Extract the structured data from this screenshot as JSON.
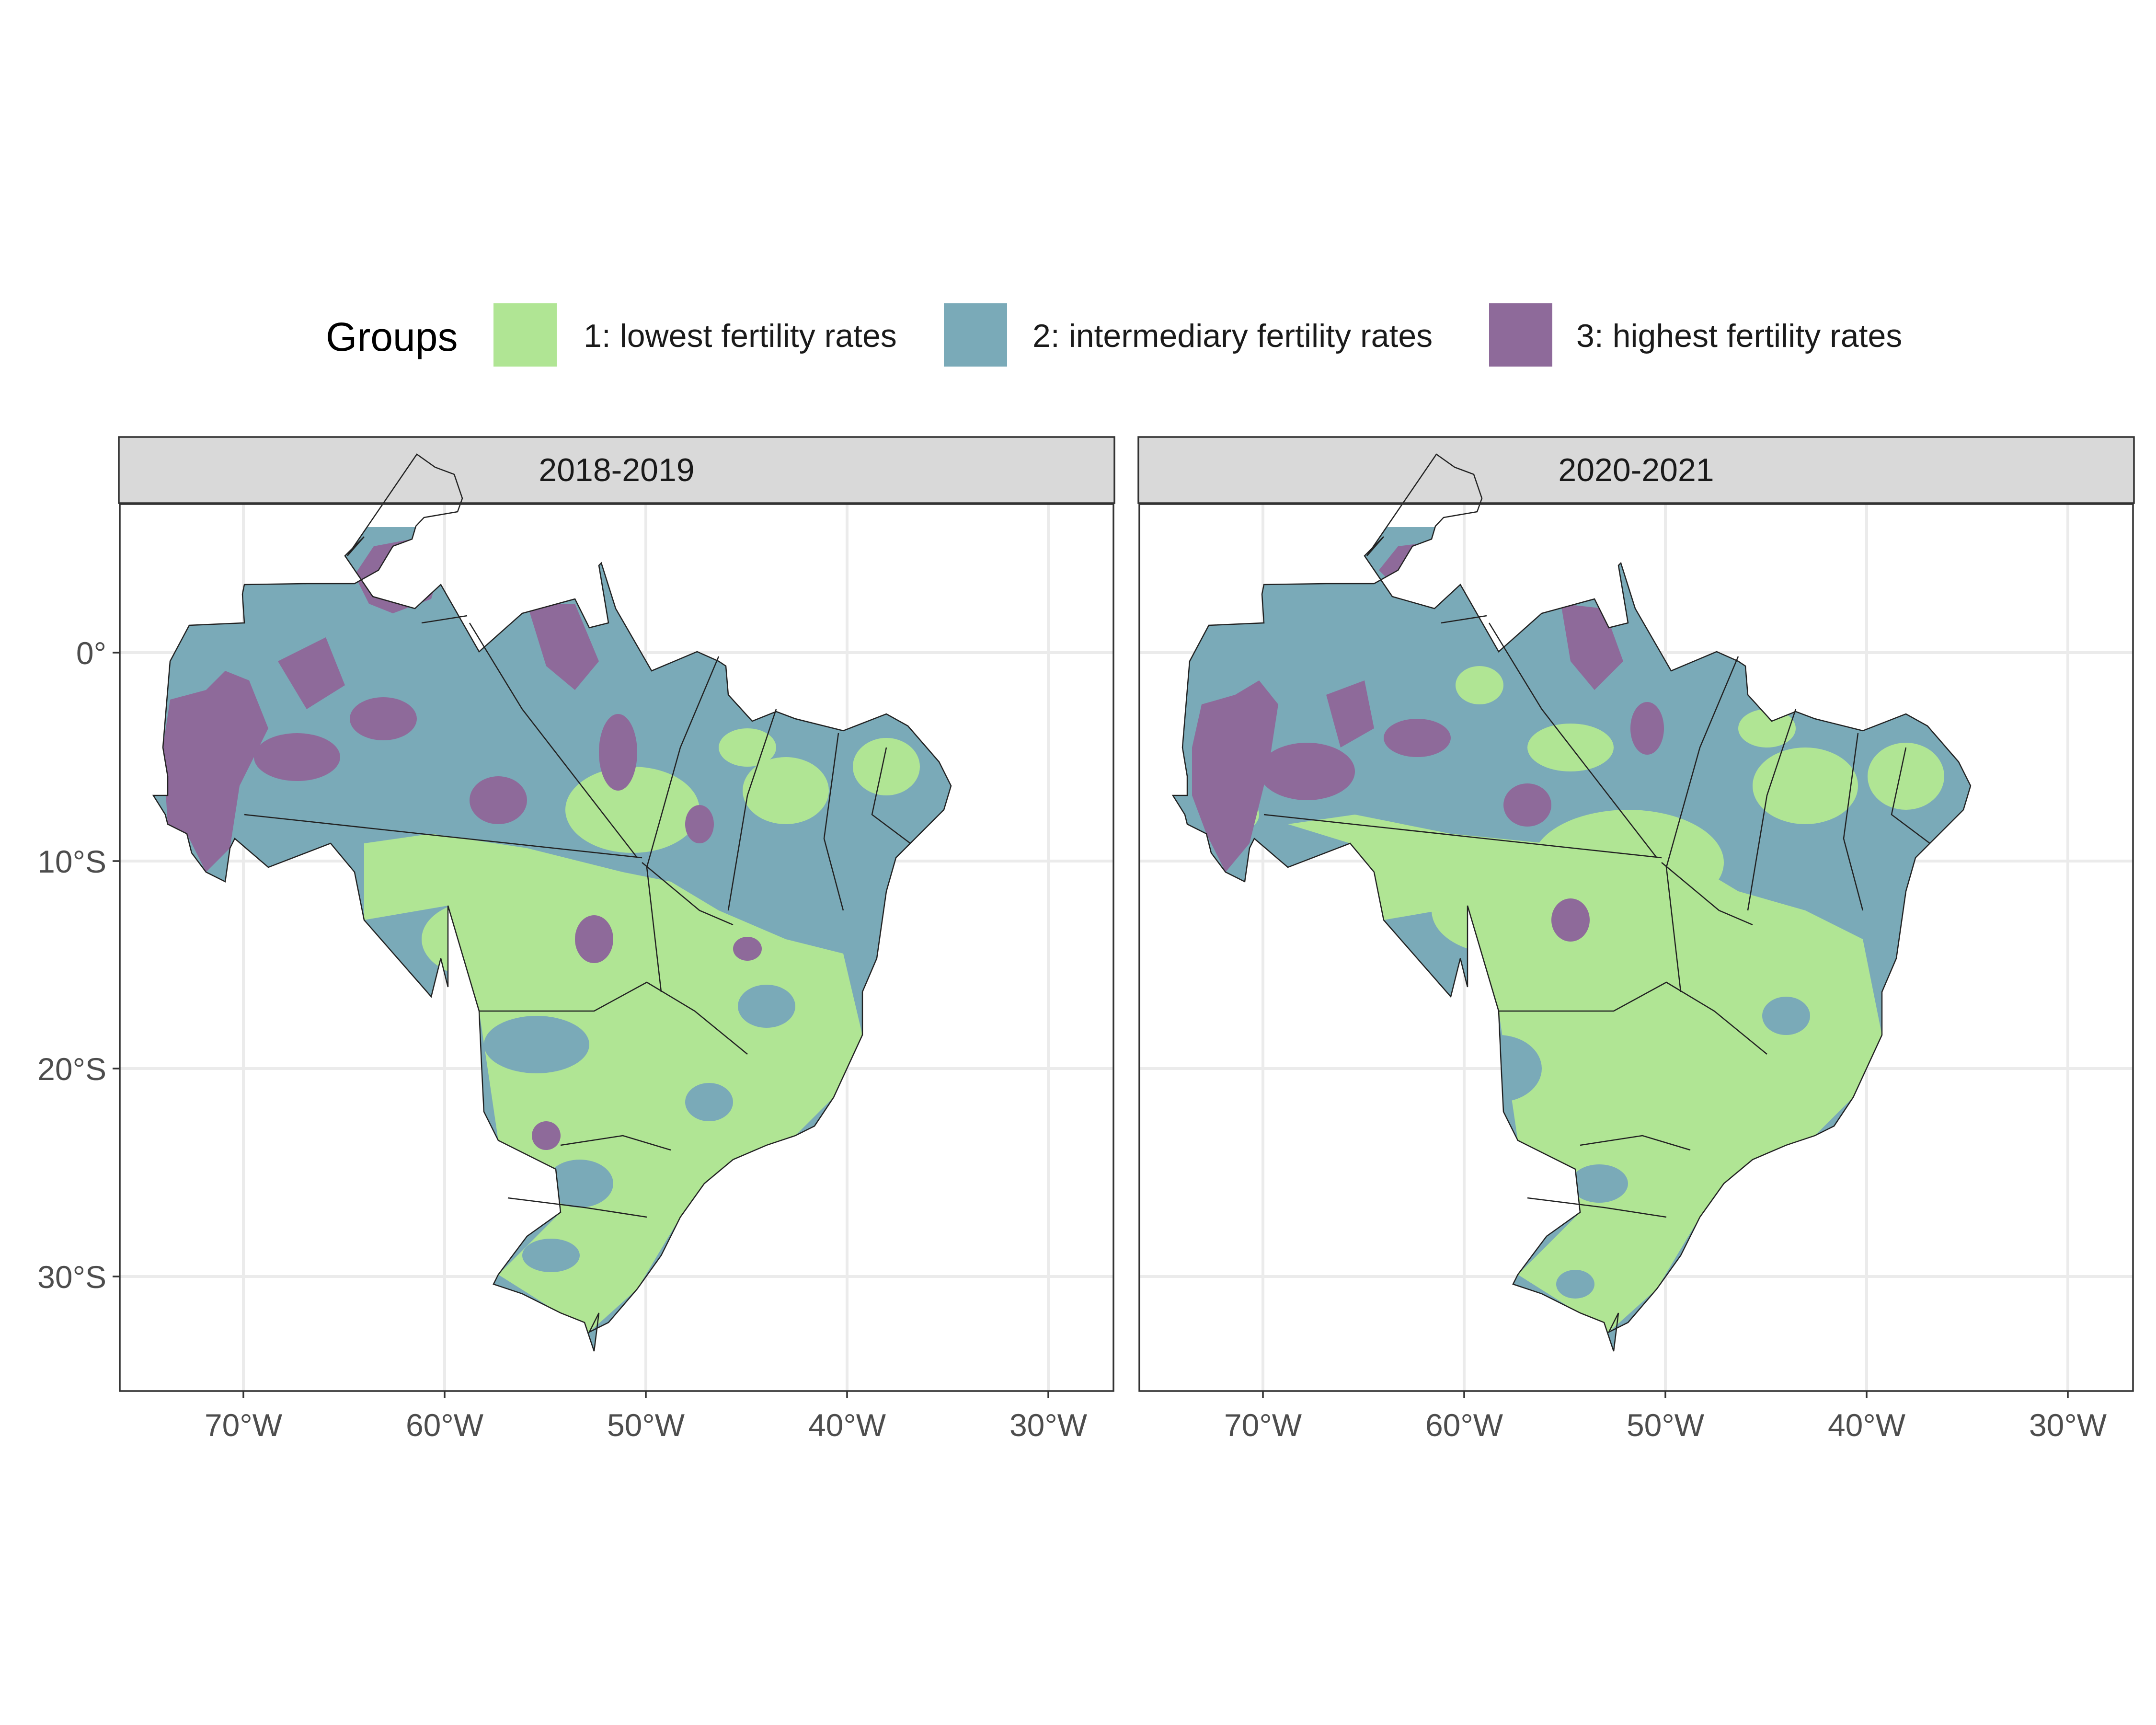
{
  "legend": {
    "title": "Groups",
    "items": [
      {
        "label": "1: lowest fertility rates",
        "color": "#b0e594"
      },
      {
        "label": "2: intermediary fertility rates",
        "color": "#7aaab8"
      },
      {
        "label": "3: highest fertility rates",
        "color": "#8e6a9a"
      }
    ]
  },
  "panels": [
    {
      "title": "2018-2019"
    },
    {
      "title": "2020-2021"
    }
  ],
  "axes": {
    "x_ticks": [
      "70°W",
      "60°W",
      "50°W",
      "40°W",
      "30°W"
    ],
    "y_ticks": [
      "0°",
      "10°S",
      "20°S",
      "30°S"
    ]
  },
  "chart_data": {
    "type": "choropleth",
    "region": "Brazil (municipalities)",
    "facets": [
      "2018-2019",
      "2020-2021"
    ],
    "x_ticks_lon": [
      -70,
      -60,
      -50,
      -40,
      -30
    ],
    "y_ticks_lat": [
      0,
      -10,
      -20,
      -30
    ],
    "xlim": [
      -76,
      -26.5
    ],
    "ylim": [
      -35.5,
      7
    ],
    "grid": true,
    "legend_position": "top"
  }
}
